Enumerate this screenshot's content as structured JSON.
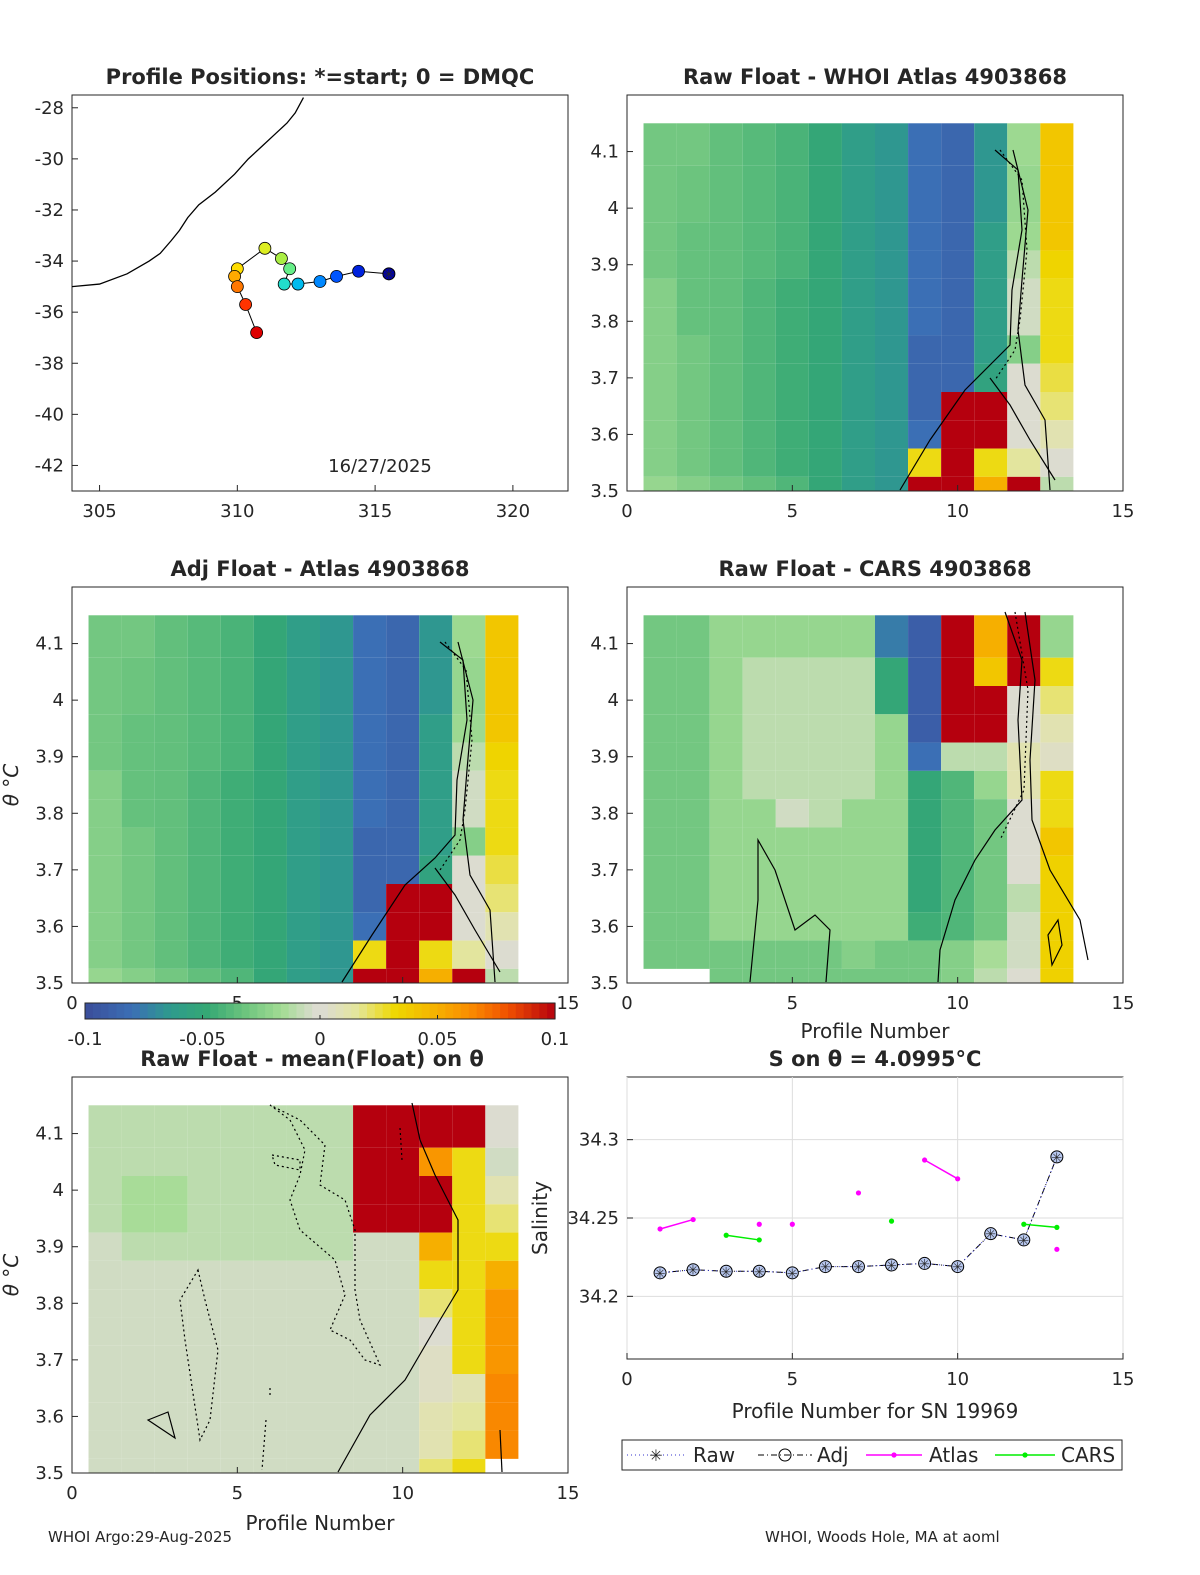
{
  "footer": {
    "left": "WHOI Argo:29-Aug-2025",
    "right": "WHOI, Woods Hole, MA at aoml"
  },
  "colorbar": {
    "min": -0.1,
    "max": 0.1,
    "ticks": [
      "-0.1",
      "-0.05",
      "0",
      "0.05",
      "0.1"
    ],
    "colormap": "parula-green-gray-yellow-red"
  },
  "chart_data": [
    {
      "type": "scatter",
      "title": "Profile Positions: *=start; 0 = DMQC",
      "date_label": "16/27/2025",
      "xlim": [
        304,
        322
      ],
      "ylim": [
        -43,
        -27.5
      ],
      "xticks": [
        "305",
        "310",
        "315",
        "320"
      ],
      "yticks": [
        "-28",
        "-30",
        "-32",
        "-34",
        "-36",
        "-38",
        "-40",
        "-42"
      ],
      "track_lon": [
        315.5,
        314.4,
        313.6,
        313.0,
        312.2,
        311.7,
        311.9,
        311.6,
        311.0,
        310.0,
        309.9,
        310.0,
        310.3,
        310.7
      ],
      "track_lat": [
        -34.5,
        -34.4,
        -34.6,
        -34.8,
        -34.9,
        -34.9,
        -34.3,
        -33.9,
        -33.5,
        -34.3,
        -34.6,
        -35.0,
        -35.7,
        -36.8
      ],
      "coastline_lon": [
        304.0,
        305.0,
        306.0,
        306.8,
        307.2,
        307.6,
        307.9,
        308.2,
        308.6,
        309.2,
        309.9,
        310.4,
        310.9,
        311.4,
        311.8,
        312.1,
        312.4
      ],
      "coastline_lat": [
        -35.0,
        -34.9,
        -34.5,
        -34.0,
        -33.7,
        -33.2,
        -32.8,
        -32.3,
        -31.8,
        -31.3,
        -30.6,
        -30.0,
        -29.5,
        -29.0,
        -28.6,
        -28.2,
        -27.6
      ]
    },
    {
      "type": "heatmap",
      "title": "Raw Float - WHOI Atlas  4903868",
      "xlim": [
        0,
        15
      ],
      "ylim": [
        3.5,
        4.2
      ],
      "xticks": [
        "0",
        "5",
        "10",
        "15"
      ],
      "yticks": [
        "3.5",
        "3.6",
        "3.7",
        "3.8",
        "3.9",
        "4",
        "4.1"
      ],
      "theta_levels": [
        3.5,
        3.55,
        3.6,
        3.65,
        3.7,
        3.75,
        3.8,
        3.85,
        3.9,
        3.95,
        4.0,
        4.05,
        4.1
      ],
      "profiles": [
        1,
        2,
        3,
        4,
        5,
        6,
        7,
        8,
        9,
        10,
        11,
        12,
        13
      ],
      "values": [
        [
          -0.03,
          -0.03,
          -0.035,
          -0.038,
          -0.042,
          -0.05,
          -0.06,
          -0.065,
          -0.08,
          -0.085,
          -0.065,
          -0.018,
          0.04
        ],
        [
          -0.03,
          -0.032,
          -0.035,
          -0.038,
          -0.042,
          -0.05,
          -0.06,
          -0.065,
          -0.08,
          -0.085,
          -0.065,
          -0.02,
          0.04
        ],
        [
          -0.03,
          -0.032,
          -0.035,
          -0.038,
          -0.042,
          -0.05,
          -0.06,
          -0.065,
          -0.08,
          -0.085,
          -0.065,
          -0.02,
          0.04
        ],
        [
          -0.03,
          -0.034,
          -0.035,
          -0.038,
          -0.042,
          -0.05,
          -0.06,
          -0.065,
          -0.08,
          -0.085,
          -0.06,
          -0.018,
          0.04
        ],
        [
          -0.03,
          -0.034,
          -0.035,
          -0.038,
          -0.042,
          -0.05,
          -0.06,
          -0.065,
          -0.08,
          -0.085,
          -0.06,
          -0.01,
          0.034
        ],
        [
          -0.025,
          -0.034,
          -0.035,
          -0.04,
          -0.045,
          -0.05,
          -0.06,
          -0.065,
          -0.08,
          -0.085,
          -0.06,
          -0.005,
          0.03
        ],
        [
          -0.025,
          -0.034,
          -0.035,
          -0.04,
          -0.045,
          -0.05,
          -0.06,
          -0.065,
          -0.08,
          -0.085,
          -0.06,
          -0.005,
          0.03
        ],
        [
          -0.025,
          -0.03,
          -0.035,
          -0.04,
          -0.045,
          -0.05,
          -0.06,
          -0.065,
          -0.085,
          -0.085,
          -0.06,
          -0.025,
          0.03
        ],
        [
          -0.025,
          -0.03,
          -0.035,
          -0.04,
          -0.045,
          -0.05,
          -0.06,
          -0.065,
          -0.085,
          -0.085,
          -0.055,
          0.0,
          0.025
        ],
        [
          -0.025,
          -0.03,
          -0.035,
          -0.04,
          -0.045,
          -0.05,
          -0.06,
          -0.065,
          -0.085,
          0.1,
          0.1,
          0.0,
          0.02
        ],
        [
          -0.025,
          -0.03,
          -0.035,
          -0.04,
          -0.045,
          -0.05,
          -0.06,
          -0.065,
          -0.08,
          0.1,
          0.1,
          0.0,
          0.01
        ],
        [
          -0.025,
          -0.03,
          -0.035,
          -0.04,
          -0.045,
          -0.05,
          -0.06,
          -0.065,
          0.03,
          0.1,
          0.03,
          0.015,
          0.002
        ],
        [
          -0.02,
          -0.025,
          -0.03,
          -0.035,
          -0.04,
          -0.05,
          -0.06,
          -0.065,
          0.1,
          0.1,
          0.05,
          0.1,
          -0.01
        ]
      ]
    },
    {
      "type": "heatmap",
      "title": "Adj Float - Atlas  4903868",
      "xlim": [
        0,
        15
      ],
      "ylim": [
        3.5,
        4.2
      ],
      "xticks": [
        "0",
        "5",
        "10",
        "15"
      ],
      "yticks": [
        "3.5",
        "3.6",
        "3.7",
        "3.8",
        "3.9",
        "4",
        "4.1"
      ],
      "ylabel": "θ °C",
      "profiles": [
        1,
        2,
        3,
        4,
        5,
        6,
        7,
        8,
        9,
        10,
        11,
        12,
        13
      ],
      "note": "values similar to Raw Float - WHOI Atlas panel"
    },
    {
      "type": "heatmap",
      "title": "Raw Float - CARS  4903868",
      "xlim": [
        0,
        15
      ],
      "ylim": [
        3.5,
        4.2
      ],
      "xticks": [
        "0",
        "5",
        "10",
        "15"
      ],
      "yticks": [
        "3.5",
        "3.6",
        "3.7",
        "3.8",
        "3.9",
        "4",
        "4.1"
      ],
      "xlabel": "Profile Number",
      "profiles": [
        1,
        2,
        3,
        4,
        5,
        6,
        7,
        8,
        9,
        10,
        11,
        12,
        13
      ],
      "values": [
        [
          -0.03,
          -0.03,
          -0.02,
          -0.02,
          -0.02,
          -0.02,
          -0.02,
          -0.075,
          -0.09,
          0.1,
          0.05,
          0.1,
          -0.02
        ],
        [
          -0.03,
          -0.03,
          -0.02,
          -0.01,
          -0.01,
          -0.01,
          -0.01,
          -0.05,
          -0.09,
          0.1,
          0.04,
          0.1,
          0.03
        ],
        [
          -0.03,
          -0.03,
          -0.02,
          -0.01,
          -0.01,
          -0.01,
          -0.01,
          -0.05,
          -0.09,
          0.1,
          0.1,
          0.0,
          0.02
        ],
        [
          -0.03,
          -0.03,
          -0.02,
          -0.01,
          -0.01,
          -0.01,
          -0.01,
          -0.02,
          -0.09,
          0.1,
          0.1,
          0.0,
          0.01
        ],
        [
          -0.03,
          -0.03,
          -0.02,
          -0.01,
          -0.01,
          -0.01,
          -0.01,
          -0.02,
          -0.08,
          -0.01,
          -0.01,
          0.01,
          0.005
        ],
        [
          -0.03,
          -0.03,
          -0.02,
          -0.01,
          -0.01,
          -0.01,
          -0.01,
          -0.02,
          -0.05,
          -0.04,
          -0.02,
          0.01,
          0.03
        ],
        [
          -0.03,
          -0.03,
          -0.02,
          -0.02,
          -0.005,
          -0.01,
          -0.02,
          -0.02,
          -0.05,
          -0.04,
          -0.03,
          0.0,
          0.03
        ],
        [
          -0.03,
          -0.03,
          -0.02,
          -0.02,
          -0.02,
          -0.02,
          -0.02,
          -0.02,
          -0.05,
          -0.04,
          -0.03,
          0.0,
          0.04
        ],
        [
          -0.03,
          -0.03,
          -0.02,
          -0.02,
          -0.02,
          -0.02,
          -0.02,
          -0.02,
          -0.05,
          -0.04,
          -0.03,
          0.0,
          0.035
        ],
        [
          -0.03,
          -0.03,
          -0.02,
          -0.02,
          -0.02,
          -0.02,
          -0.02,
          -0.02,
          -0.05,
          -0.04,
          -0.03,
          -0.01,
          0.035
        ],
        [
          -0.03,
          -0.03,
          -0.02,
          -0.02,
          -0.02,
          -0.02,
          -0.02,
          -0.02,
          -0.045,
          -0.04,
          -0.03,
          -0.005,
          0.035
        ],
        [
          -0.03,
          -0.03,
          -0.03,
          -0.03,
          -0.03,
          -0.03,
          -0.025,
          -0.03,
          -0.03,
          -0.025,
          -0.015,
          -0.005,
          0.035
        ],
        [
          null,
          null,
          -0.03,
          -0.03,
          -0.03,
          -0.03,
          -0.03,
          -0.03,
          -0.03,
          -0.025,
          -0.01,
          0.0,
          0.035
        ]
      ]
    },
    {
      "type": "heatmap",
      "title": "Raw Float - mean(Float) on θ",
      "xlim": [
        0,
        15
      ],
      "ylim": [
        3.5,
        4.2
      ],
      "xticks": [
        "0",
        "5",
        "10",
        "15"
      ],
      "yticks": [
        "3.5",
        "3.6",
        "3.7",
        "3.8",
        "3.9",
        "4",
        "4.1"
      ],
      "ylabel": "θ °C",
      "xlabel": "Profile Number",
      "profiles": [
        1,
        2,
        3,
        4,
        5,
        6,
        7,
        8,
        9,
        10,
        11,
        12,
        13
      ],
      "values": [
        [
          -0.01,
          -0.01,
          -0.01,
          -0.01,
          -0.01,
          -0.01,
          -0.01,
          -0.01,
          0.1,
          0.1,
          0.1,
          0.1,
          0.0
        ],
        [
          -0.01,
          -0.01,
          -0.01,
          -0.01,
          -0.01,
          -0.01,
          -0.01,
          -0.01,
          0.1,
          0.1,
          0.06,
          0.03,
          -0.005
        ],
        [
          -0.01,
          -0.015,
          -0.015,
          -0.01,
          -0.01,
          -0.01,
          -0.01,
          -0.01,
          0.1,
          0.1,
          0.1,
          0.03,
          0.01
        ],
        [
          -0.01,
          -0.015,
          -0.015,
          -0.01,
          -0.01,
          -0.01,
          -0.01,
          -0.01,
          0.1,
          0.1,
          0.1,
          0.03,
          0.02
        ],
        [
          -0.005,
          -0.01,
          -0.01,
          -0.01,
          -0.01,
          -0.01,
          -0.01,
          -0.01,
          -0.005,
          -0.005,
          0.05,
          0.03,
          0.03
        ],
        [
          -0.005,
          -0.005,
          -0.005,
          -0.005,
          -0.005,
          -0.005,
          -0.005,
          -0.005,
          -0.005,
          -0.005,
          0.03,
          0.03,
          0.05
        ],
        [
          -0.005,
          -0.005,
          -0.005,
          -0.005,
          -0.005,
          -0.005,
          -0.005,
          -0.005,
          -0.005,
          -0.005,
          0.02,
          0.03,
          0.06
        ],
        [
          -0.005,
          -0.005,
          -0.005,
          -0.005,
          -0.005,
          -0.005,
          -0.005,
          -0.005,
          -0.005,
          -0.005,
          0.0,
          0.03,
          0.06
        ],
        [
          -0.005,
          -0.005,
          -0.005,
          -0.005,
          -0.005,
          -0.005,
          -0.005,
          -0.005,
          -0.005,
          -0.005,
          0.005,
          0.03,
          0.06
        ],
        [
          -0.005,
          -0.005,
          -0.005,
          -0.005,
          -0.005,
          -0.005,
          -0.005,
          -0.005,
          -0.005,
          -0.005,
          0.005,
          0.01,
          0.065
        ],
        [
          -0.005,
          -0.005,
          -0.005,
          -0.005,
          -0.005,
          -0.005,
          -0.005,
          -0.005,
          -0.005,
          -0.005,
          0.01,
          0.015,
          0.065
        ],
        [
          -0.005,
          -0.005,
          -0.005,
          -0.005,
          -0.005,
          -0.005,
          -0.005,
          -0.005,
          -0.005,
          -0.005,
          0.01,
          0.02,
          0.065
        ],
        [
          -0.005,
          -0.005,
          -0.005,
          -0.005,
          -0.005,
          -0.005,
          -0.005,
          -0.005,
          -0.005,
          -0.005,
          0.02,
          0.03,
          null
        ]
      ]
    },
    {
      "type": "line",
      "title": "S on θ = 4.0995°C",
      "xlabel": "Profile Number for SN 19969",
      "ylabel": "Salinity",
      "xlim": [
        0,
        15
      ],
      "ylim": [
        34.16,
        34.34
      ],
      "xticks": [
        "0",
        "5",
        "10",
        "15"
      ],
      "yticks": [
        "34.2",
        "34.25",
        "34.3"
      ],
      "legend": [
        "Raw",
        "Adj",
        "Atlas",
        "CARS"
      ],
      "legend_position": "bottom",
      "x": [
        1,
        2,
        3,
        4,
        5,
        6,
        7,
        8,
        9,
        10,
        11,
        12,
        13
      ],
      "series": [
        {
          "name": "Raw",
          "values": [
            34.215,
            34.217,
            34.216,
            34.216,
            34.215,
            34.219,
            34.219,
            34.22,
            34.221,
            34.219,
            34.24,
            34.236,
            34.289
          ]
        },
        {
          "name": "Adj",
          "values": [
            34.215,
            34.217,
            34.216,
            34.216,
            34.215,
            34.219,
            34.219,
            34.22,
            34.221,
            34.219,
            34.24,
            34.236,
            34.289
          ]
        },
        {
          "name": "Atlas",
          "values": [
            34.243,
            34.249,
            null,
            34.246,
            34.246,
            null,
            34.266,
            null,
            34.287,
            34.275,
            null,
            null,
            34.23
          ]
        },
        {
          "name": "CARS",
          "values": [
            null,
            null,
            34.239,
            34.236,
            null,
            null,
            null,
            34.248,
            null,
            null,
            null,
            34.246,
            34.244
          ]
        }
      ]
    }
  ]
}
